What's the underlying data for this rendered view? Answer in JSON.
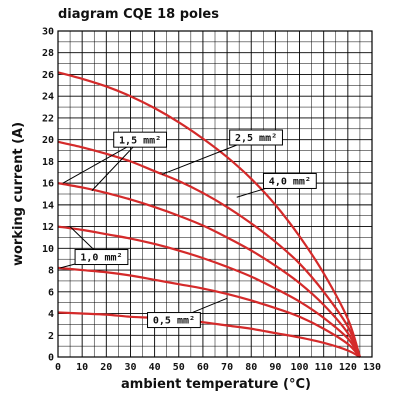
{
  "chart_data": {
    "type": "line",
    "title": "diagram CQE 18 poles",
    "xlabel": "ambient temperature (°C)",
    "ylabel": "working current (A)",
    "xlim": [
      0,
      130
    ],
    "ylim": [
      0,
      30
    ],
    "x_ticks": [
      0,
      10,
      20,
      30,
      40,
      50,
      60,
      70,
      80,
      90,
      100,
      110,
      120,
      130
    ],
    "y_ticks": [
      0,
      2,
      4,
      6,
      8,
      10,
      12,
      14,
      16,
      18,
      20,
      22,
      24,
      26,
      28,
      30
    ],
    "grid": true,
    "series": [
      {
        "name": "4,0 mm²",
        "x": [
          0,
          10,
          20,
          30,
          40,
          50,
          60,
          70,
          80,
          90,
          100,
          110,
          120,
          125
        ],
        "y": [
          26.2,
          25.6,
          24.9,
          24.0,
          22.9,
          21.6,
          20.1,
          18.4,
          16.4,
          14.0,
          11.1,
          7.7,
          3.5,
          0
        ]
      },
      {
        "name": "2,5 mm²",
        "x": [
          0,
          10,
          20,
          30,
          40,
          50,
          60,
          70,
          80,
          90,
          100,
          110,
          120,
          125
        ],
        "y": [
          19.8,
          19.3,
          18.7,
          18.0,
          17.1,
          16.2,
          15.1,
          13.8,
          12.3,
          10.6,
          8.6,
          6.0,
          2.8,
          0
        ]
      },
      {
        "name": "1,5 mm²",
        "x": [
          0,
          10,
          20,
          30,
          40,
          50,
          60,
          70,
          80,
          90,
          100,
          110,
          120,
          125
        ],
        "y": [
          16.0,
          15.6,
          15.1,
          14.5,
          13.8,
          13.0,
          12.1,
          11.0,
          9.8,
          8.4,
          6.8,
          4.8,
          2.2,
          0
        ]
      },
      {
        "name": "",
        "x": [
          0,
          10,
          20,
          30,
          40,
          50,
          60,
          70,
          80,
          90,
          100,
          110,
          120,
          125
        ],
        "y": [
          12.0,
          11.7,
          11.3,
          10.9,
          10.4,
          9.8,
          9.1,
          8.3,
          7.4,
          6.3,
          5.1,
          3.6,
          1.7,
          0
        ]
      },
      {
        "name": "1,0 mm²",
        "x": [
          0,
          10,
          20,
          30,
          40,
          50,
          60,
          70,
          80,
          90,
          100,
          110,
          120,
          125
        ],
        "y": [
          8.2,
          8.0,
          7.8,
          7.5,
          7.1,
          6.7,
          6.3,
          5.8,
          5.2,
          4.5,
          3.7,
          2.6,
          1.2,
          0
        ]
      },
      {
        "name": "0,5 mm²",
        "x": [
          0,
          10,
          20,
          30,
          40,
          50,
          60,
          70,
          80,
          90,
          100,
          110,
          120,
          125
        ],
        "y": [
          4.1,
          4.0,
          3.9,
          3.7,
          3.6,
          3.4,
          3.2,
          2.9,
          2.6,
          2.2,
          1.8,
          1.3,
          0.6,
          0
        ]
      }
    ],
    "labels": [
      {
        "text": "1,5 mm²",
        "anchor_x": 34,
        "anchor_y": 20.0,
        "targets": [
          [
            2,
            16.0
          ],
          [
            14,
            15.3
          ]
        ]
      },
      {
        "text": "2,5 mm²",
        "anchor_x": 82,
        "anchor_y": 20.2,
        "targets": [
          [
            43,
            16.8
          ]
        ]
      },
      {
        "text": "4,0 mm²",
        "anchor_x": 96,
        "anchor_y": 16.2,
        "targets": [
          [
            74,
            14.7
          ]
        ]
      },
      {
        "text": "1,0 mm²",
        "anchor_x": 18,
        "anchor_y": 9.2,
        "targets": [
          [
            5,
            12.0
          ],
          [
            1,
            8.2
          ]
        ]
      },
      {
        "text": "0,5 mm²",
        "anchor_x": 48,
        "anchor_y": 3.4,
        "targets": [
          [
            70,
            5.4
          ]
        ]
      }
    ]
  }
}
